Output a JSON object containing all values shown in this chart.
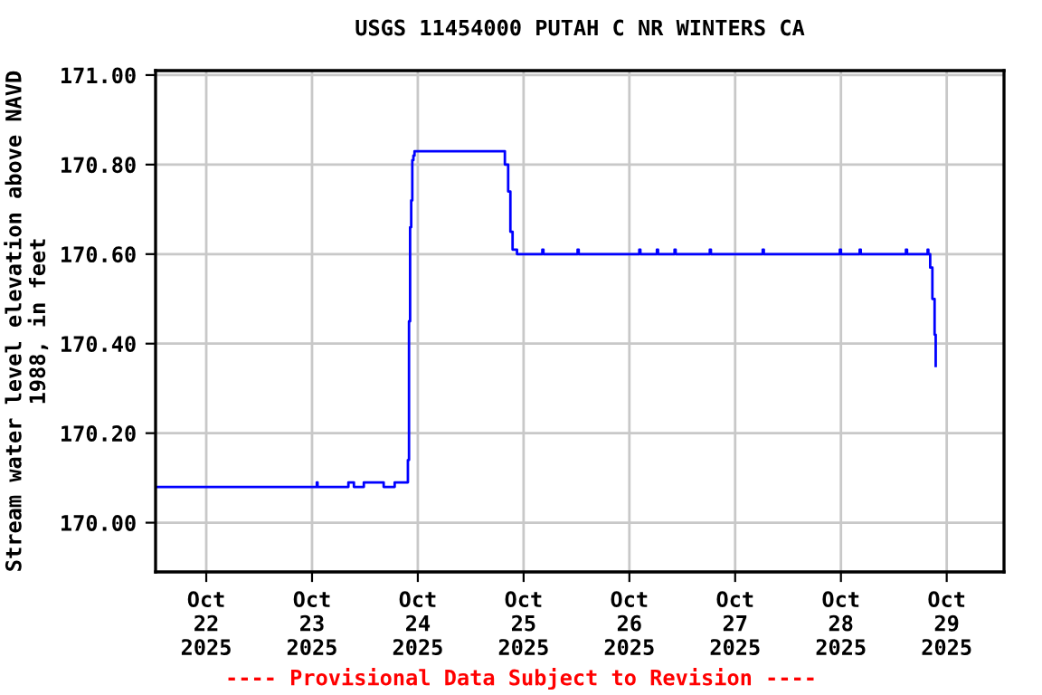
{
  "chart_data": {
    "type": "line",
    "title": "USGS 11454000 PUTAH C NR WINTERS CA",
    "ylabel": "Stream water level elevation above NAVD\n1988, in feet",
    "annotations": [
      "---- Provisional Data Subject to Revision ----"
    ],
    "x": [
      "2025-10-21T12:30",
      "2025-10-23T01:00",
      "2025-10-23T01:05",
      "2025-10-23T01:15",
      "2025-10-23T08:00",
      "2025-10-23T08:15",
      "2025-10-23T09:30",
      "2025-10-23T11:30",
      "2025-10-23T11:45",
      "2025-10-23T16:00",
      "2025-10-23T16:15",
      "2025-10-23T18:30",
      "2025-10-23T18:45",
      "2025-10-23T21:30",
      "2025-10-23T21:45",
      "2025-10-23T22:00",
      "2025-10-23T22:15",
      "2025-10-23T22:30",
      "2025-10-23T22:45",
      "2025-10-23T23:00",
      "2025-10-23T23:15",
      "2025-10-24T19:30",
      "2025-10-24T19:45",
      "2025-10-24T20:30",
      "2025-10-24T21:00",
      "2025-10-24T21:30",
      "2025-10-24T22:30",
      "2025-10-25T04:00",
      "2025-10-25T04:15",
      "2025-10-25T04:30",
      "2025-10-25T12:00",
      "2025-10-25T12:15",
      "2025-10-25T12:30",
      "2025-10-26T02:00",
      "2025-10-26T02:15",
      "2025-10-26T02:30",
      "2025-10-26T06:00",
      "2025-10-26T06:15",
      "2025-10-26T06:30",
      "2025-10-26T10:00",
      "2025-10-26T10:15",
      "2025-10-26T10:30",
      "2025-10-26T18:00",
      "2025-10-26T18:15",
      "2025-10-26T18:30",
      "2025-10-27T06:00",
      "2025-10-27T06:15",
      "2025-10-27T06:30",
      "2025-10-27T23:30",
      "2025-10-27T23:45",
      "2025-10-28T00:00",
      "2025-10-28T04:00",
      "2025-10-28T04:15",
      "2025-10-28T04:30",
      "2025-10-28T14:30",
      "2025-10-28T14:45",
      "2025-10-28T15:00",
      "2025-10-28T19:30",
      "2025-10-28T19:40",
      "2025-10-28T19:50",
      "2025-10-28T20:15",
      "2025-10-28T20:45",
      "2025-10-28T21:15",
      "2025-10-28T21:30"
    ],
    "series": [
      {
        "color": "#0000ff",
        "values": [
          170.08,
          170.08,
          170.09,
          170.08,
          170.08,
          170.09,
          170.08,
          170.08,
          170.09,
          170.09,
          170.08,
          170.08,
          170.09,
          170.09,
          170.14,
          170.45,
          170.66,
          170.72,
          170.81,
          170.82,
          170.83,
          170.83,
          170.8,
          170.74,
          170.65,
          170.61,
          170.6,
          170.6,
          170.61,
          170.6,
          170.6,
          170.61,
          170.6,
          170.6,
          170.61,
          170.6,
          170.6,
          170.61,
          170.6,
          170.6,
          170.61,
          170.6,
          170.6,
          170.61,
          170.6,
          170.6,
          170.61,
          170.6,
          170.6,
          170.61,
          170.6,
          170.6,
          170.61,
          170.6,
          170.6,
          170.61,
          170.6,
          170.6,
          170.61,
          170.6,
          170.57,
          170.5,
          170.42,
          170.35
        ]
      }
    ],
    "xlim": [
      "2025-10-21T12:30",
      "2025-10-29T13:00"
    ],
    "xticks": [
      {
        "value": "2025-10-22",
        "label": "Oct\n22\n2025"
      },
      {
        "value": "2025-10-23",
        "label": "Oct\n23\n2025"
      },
      {
        "value": "2025-10-24",
        "label": "Oct\n24\n2025"
      },
      {
        "value": "2025-10-25",
        "label": "Oct\n25\n2025"
      },
      {
        "value": "2025-10-26",
        "label": "Oct\n26\n2025"
      },
      {
        "value": "2025-10-27",
        "label": "Oct\n27\n2025"
      },
      {
        "value": "2025-10-28",
        "label": "Oct\n28\n2025"
      },
      {
        "value": "2025-10-29",
        "label": "Oct\n29\n2025"
      }
    ],
    "ylim": [
      169.89,
      171.01
    ],
    "yticks": [
      {
        "value": 170.0,
        "label": "170.00"
      },
      {
        "value": 170.2,
        "label": "170.20"
      },
      {
        "value": 170.4,
        "label": "170.40"
      },
      {
        "value": 170.6,
        "label": "170.60"
      },
      {
        "value": 170.8,
        "label": "170.80"
      },
      {
        "value": 171.0,
        "label": "171.00"
      }
    ],
    "grid": true,
    "legend": false,
    "marker": "none",
    "line_style": "solid"
  }
}
